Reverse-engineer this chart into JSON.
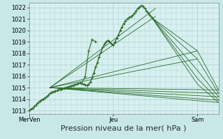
{
  "bg_color": "#c8e8e8",
  "plot_bg_color": "#d8f0f0",
  "grid_color": "#a8d0d0",
  "line_color": "#2a6b2a",
  "xlabel": "Pression niveau de la mer( hPa )",
  "xlabel_fontsize": 8,
  "ytick_labels": [
    1013,
    1014,
    1015,
    1016,
    1017,
    1018,
    1019,
    1020,
    1021,
    1022
  ],
  "ylim": [
    1012.7,
    1022.4
  ],
  "xlim_hours": [
    0,
    108
  ],
  "xtick_labels": [
    "MerVen",
    "Jeu",
    "Sam"
  ],
  "xtick_positions": [
    0,
    48,
    96
  ],
  "pivot_x": 12,
  "pivot_y": 1015.0,
  "observed_x": [
    0,
    1,
    2,
    3,
    4,
    5,
    6,
    7,
    8,
    9,
    10,
    11,
    12,
    13,
    14,
    15,
    16,
    17,
    18,
    19,
    20,
    21,
    22,
    23,
    24,
    25,
    26,
    27,
    28,
    29,
    30,
    31,
    32,
    33,
    34,
    35,
    36,
    37,
    38,
    39,
    40,
    41,
    42,
    43,
    44,
    45,
    46,
    47,
    48,
    49,
    50,
    51,
    52,
    53,
    54,
    55,
    56,
    57,
    58,
    59,
    60,
    61,
    62,
    63,
    64,
    65,
    66,
    67,
    68,
    69,
    70
  ],
  "observed_y": [
    1013.0,
    1013.1,
    1013.2,
    1013.35,
    1013.5,
    1013.65,
    1013.8,
    1013.9,
    1014.0,
    1014.1,
    1014.2,
    1014.35,
    1014.5,
    1014.6,
    1014.65,
    1014.7,
    1014.75,
    1014.8,
    1014.85,
    1014.9,
    1014.95,
    1015.0,
    1015.05,
    1015.1,
    1015.15,
    1015.2,
    1015.25,
    1015.3,
    1015.35,
    1015.4,
    1015.35,
    1015.3,
    1015.25,
    1015.2,
    1015.3,
    1015.5,
    1015.9,
    1016.3,
    1016.8,
    1017.2,
    1017.7,
    1018.1,
    1018.5,
    1018.8,
    1019.0,
    1019.1,
    1019.0,
    1018.8,
    1018.7,
    1019.0,
    1019.3,
    1019.6,
    1020.0,
    1020.3,
    1020.6,
    1020.85,
    1021.0,
    1021.1,
    1021.2,
    1021.3,
    1021.5,
    1021.7,
    1021.9,
    1022.05,
    1022.15,
    1022.1,
    1021.9,
    1021.7,
    1021.5,
    1021.3,
    1021.1
  ],
  "fan_lines": [
    {
      "x": [
        12,
        108
      ],
      "y": [
        1015.0,
        1014.8
      ]
    },
    {
      "x": [
        12,
        108
      ],
      "y": [
        1015.0,
        1014.5
      ]
    },
    {
      "x": [
        12,
        108
      ],
      "y": [
        1015.0,
        1014.2
      ]
    },
    {
      "x": [
        12,
        108
      ],
      "y": [
        1015.0,
        1013.9
      ]
    },
    {
      "x": [
        12,
        108
      ],
      "y": [
        1015.0,
        1013.7
      ]
    },
    {
      "x": [
        12,
        96
      ],
      "y": [
        1015.0,
        1017.5
      ]
    },
    {
      "x": [
        12,
        96
      ],
      "y": [
        1015.0,
        1018.2
      ]
    },
    {
      "x": [
        12,
        72
      ],
      "y": [
        1015.0,
        1021.2
      ]
    },
    {
      "x": [
        12,
        72
      ],
      "y": [
        1015.0,
        1021.9
      ]
    }
  ],
  "decay_lines": [
    {
      "x": [
        70,
        96,
        108
      ],
      "y": [
        1021.1,
        1018.2,
        1014.8
      ]
    },
    {
      "x": [
        70,
        96,
        108
      ],
      "y": [
        1021.1,
        1017.5,
        1014.5
      ]
    },
    {
      "x": [
        70,
        96,
        108
      ],
      "y": [
        1021.1,
        1016.5,
        1014.2
      ]
    },
    {
      "x": [
        70,
        96,
        108
      ],
      "y": [
        1021.1,
        1015.8,
        1013.9
      ]
    },
    {
      "x": [
        70,
        96,
        108
      ],
      "y": [
        1021.1,
        1015.3,
        1013.7
      ]
    }
  ],
  "bump_x": [
    30,
    32,
    34,
    36,
    38
  ],
  "bump_y": [
    1015.35,
    1016.0,
    1018.2,
    1019.2,
    1019.0
  ]
}
